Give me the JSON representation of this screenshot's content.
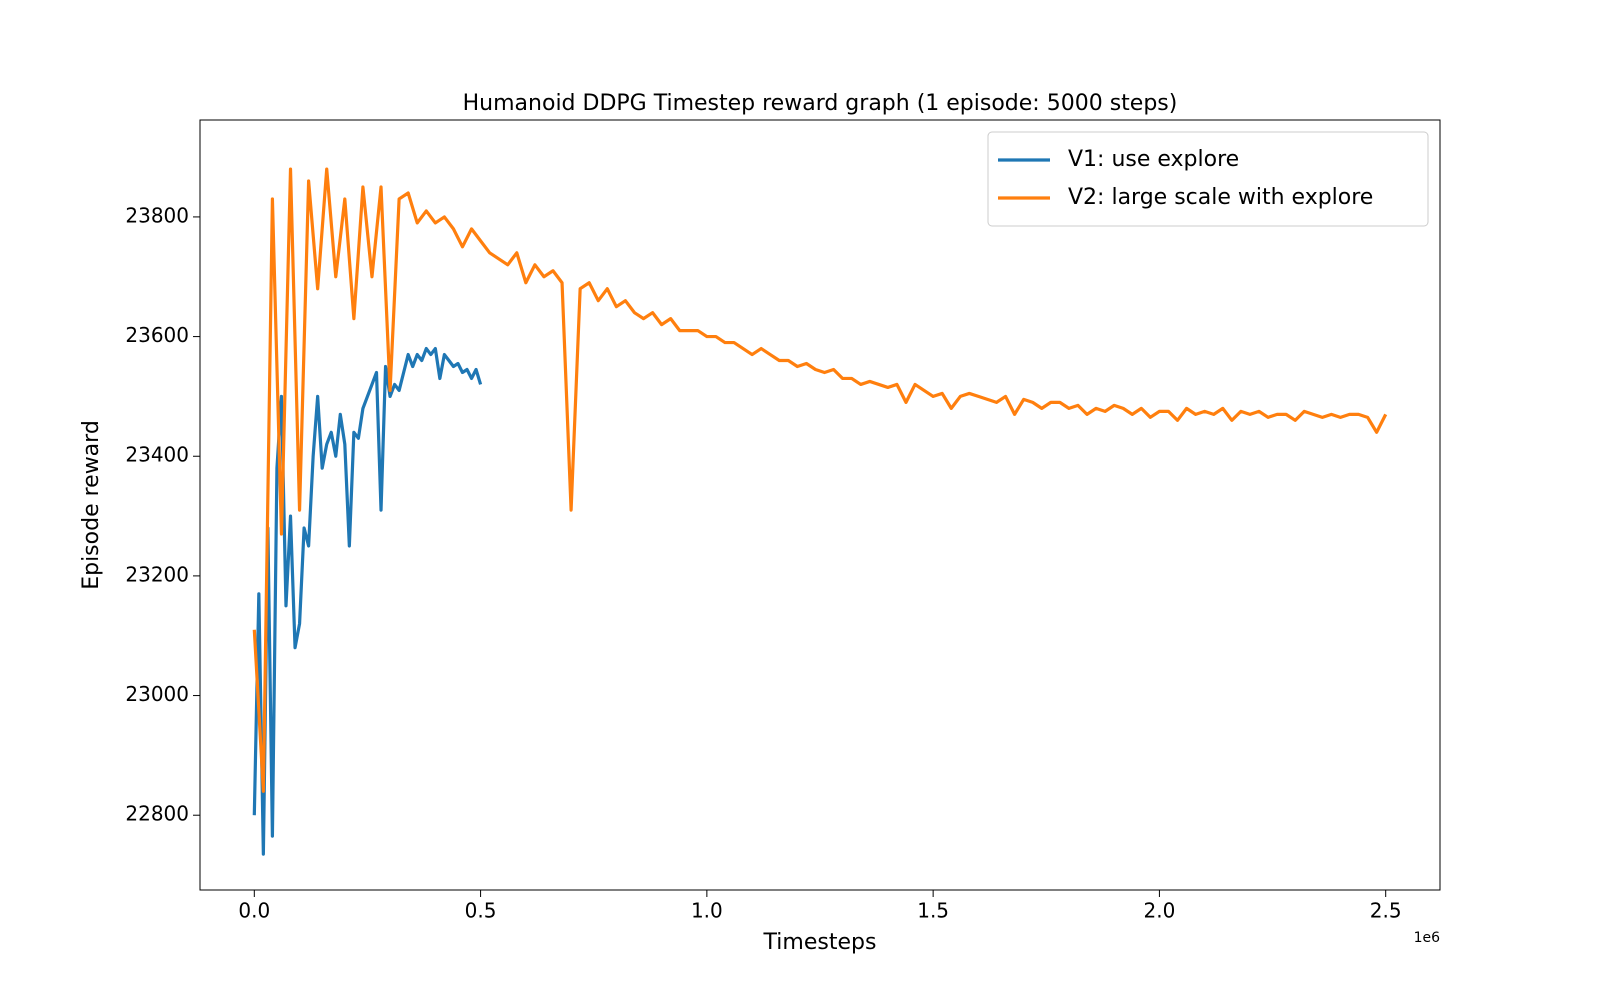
{
  "chart_data": {
    "type": "line",
    "title": "Humanoid DDPG Timestep reward graph (1 episode: 5000 steps)",
    "x_label": "Timesteps",
    "y_label": "Episode reward",
    "x_offset_label": "1e6",
    "xlim": [
      -0.12,
      2.62
    ],
    "ylim": [
      22675,
      23962
    ],
    "xticks": [
      {
        "value": 0,
        "label": "0.0"
      },
      0.5,
      {
        "value": 1,
        "label": "1.0"
      },
      1.5,
      {
        "value": 2,
        "label": "2.0"
      },
      2.5
    ],
    "yticks": [
      22800,
      23000,
      23200,
      23400,
      23600,
      23800
    ],
    "grid": false,
    "legend": "upper right",
    "series": [
      {
        "name": "V1: use explore",
        "color": "#1f77b4",
        "x": [
          0,
          0.01,
          0.02,
          0.03,
          0.04,
          0.05,
          0.06,
          0.07,
          0.08,
          0.09,
          0.1,
          0.11,
          0.12,
          0.13,
          0.14,
          0.15,
          0.16,
          0.17,
          0.18,
          0.19,
          0.2,
          0.21,
          0.22,
          0.23,
          0.24,
          0.25,
          0.26,
          0.27,
          0.28,
          0.29,
          0.3,
          0.31,
          0.32,
          0.33,
          0.34,
          0.35,
          0.36,
          0.37,
          0.38,
          0.39,
          0.4,
          0.41,
          0.42,
          0.43,
          0.44,
          0.45,
          0.46,
          0.47,
          0.48,
          0.49,
          0.5
        ],
        "values": [
          22800,
          23170,
          22735,
          23280,
          22765,
          23380,
          23500,
          23150,
          23300,
          23080,
          23120,
          23280,
          23250,
          23400,
          23500,
          23380,
          23420,
          23440,
          23400,
          23470,
          23420,
          23250,
          23440,
          23430,
          23480,
          23500,
          23520,
          23540,
          23310,
          23550,
          23500,
          23520,
          23510,
          23540,
          23570,
          23550,
          23570,
          23560,
          23580,
          23570,
          23580,
          23530,
          23570,
          23560,
          23550,
          23555,
          23540,
          23545,
          23530,
          23545,
          23520
        ]
      },
      {
        "name": "V2: large scale with explore",
        "color": "#ff7f0e",
        "x": [
          0,
          0.02,
          0.04,
          0.06,
          0.08,
          0.1,
          0.12,
          0.14,
          0.16,
          0.18,
          0.2,
          0.22,
          0.24,
          0.26,
          0.28,
          0.3,
          0.32,
          0.34,
          0.36,
          0.38,
          0.4,
          0.42,
          0.44,
          0.46,
          0.48,
          0.5,
          0.52,
          0.54,
          0.56,
          0.58,
          0.6,
          0.62,
          0.64,
          0.66,
          0.68,
          0.7,
          0.72,
          0.74,
          0.76,
          0.78,
          0.8,
          0.82,
          0.84,
          0.86,
          0.88,
          0.9,
          0.92,
          0.94,
          0.96,
          0.98,
          1,
          1.02,
          1.04,
          1.06,
          1.08,
          1.1,
          1.12,
          1.14,
          1.16,
          1.18,
          1.2,
          1.22,
          1.24,
          1.26,
          1.28,
          1.3,
          1.32,
          1.34,
          1.36,
          1.38,
          1.4,
          1.42,
          1.44,
          1.46,
          1.48,
          1.5,
          1.52,
          1.54,
          1.56,
          1.58,
          1.6,
          1.62,
          1.64,
          1.66,
          1.68,
          1.7,
          1.72,
          1.74,
          1.76,
          1.78,
          1.8,
          1.82,
          1.84,
          1.86,
          1.88,
          1.9,
          1.92,
          1.94,
          1.96,
          1.98,
          2,
          2.02,
          2.04,
          2.06,
          2.08,
          2.1,
          2.12,
          2.14,
          2.16,
          2.18,
          2.2,
          2.22,
          2.24,
          2.26,
          2.28,
          2.3,
          2.32,
          2.34,
          2.36,
          2.38,
          2.4,
          2.42,
          2.44,
          2.46,
          2.48,
          2.5
        ],
        "values": [
          23110,
          22840,
          23830,
          23270,
          23880,
          23310,
          23860,
          23680,
          23880,
          23700,
          23830,
          23630,
          23850,
          23700,
          23850,
          23510,
          23830,
          23840,
          23790,
          23810,
          23790,
          23800,
          23780,
          23750,
          23780,
          23760,
          23740,
          23730,
          23720,
          23740,
          23690,
          23720,
          23700,
          23710,
          23690,
          23310,
          23680,
          23690,
          23660,
          23680,
          23650,
          23660,
          23640,
          23630,
          23640,
          23620,
          23630,
          23610,
          23610,
          23610,
          23600,
          23600,
          23590,
          23590,
          23580,
          23570,
          23580,
          23570,
          23560,
          23560,
          23550,
          23555,
          23545,
          23540,
          23545,
          23530,
          23530,
          23520,
          23525,
          23520,
          23515,
          23520,
          23490,
          23520,
          23510,
          23500,
          23505,
          23480,
          23500,
          23505,
          23500,
          23495,
          23490,
          23500,
          23470,
          23495,
          23490,
          23480,
          23490,
          23490,
          23480,
          23485,
          23470,
          23480,
          23475,
          23485,
          23480,
          23470,
          23480,
          23465,
          23475,
          23475,
          23460,
          23480,
          23470,
          23475,
          23470,
          23480,
          23460,
          23475,
          23470,
          23475,
          23465,
          23470,
          23470,
          23460,
          23475,
          23470,
          23465,
          23470,
          23465,
          23470,
          23470,
          23465,
          23440,
          23470
        ]
      }
    ]
  }
}
